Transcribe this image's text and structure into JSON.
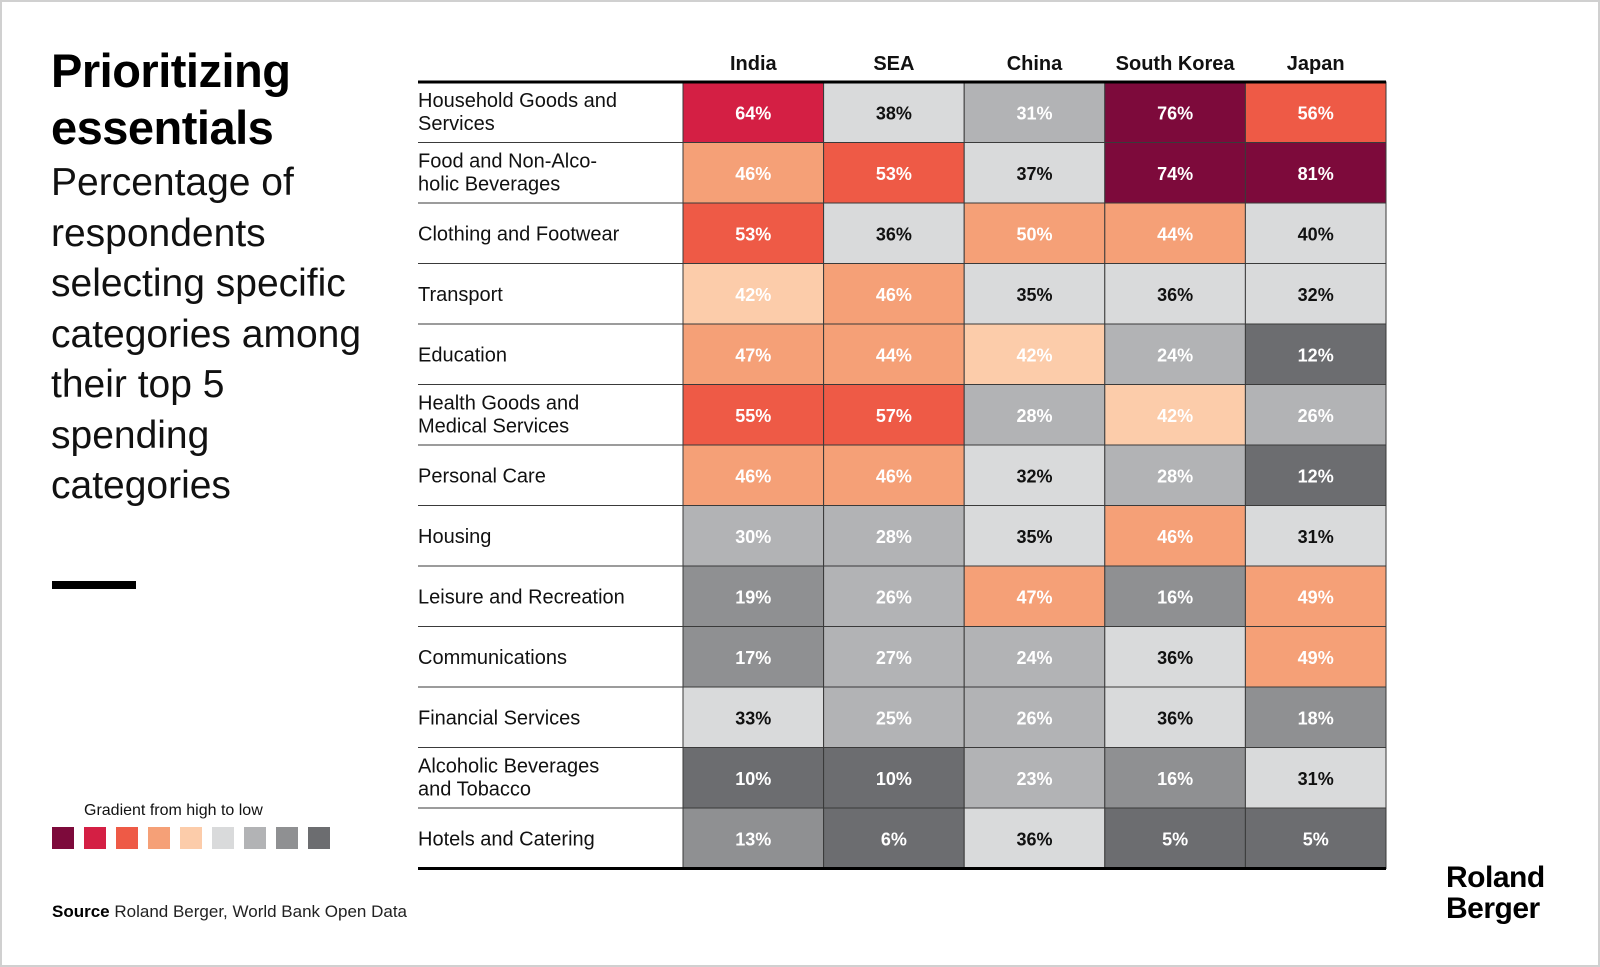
{
  "title": "Prioritizing essentials",
  "subtitle": "Percentage of respondents selecting specific categories among their top 5 spending categories",
  "legend": {
    "title": "Gradient from high to low",
    "colors": [
      "#7d0a3b",
      "#d41f44",
      "#ee5a46",
      "#f5a077",
      "#fcccaa",
      "#d9dadb",
      "#b2b3b5",
      "#8f9092",
      "#6c6d70"
    ]
  },
  "source": {
    "label": "Source",
    "text": "Roland Berger, World Bank Open Data"
  },
  "logo": {
    "line1": "Roland",
    "line2": "Berger"
  },
  "chart_data": {
    "type": "heatmap",
    "title": "Prioritizing essentials",
    "subtitle": "Percentage of respondents selecting specific categories among their top 5 spending categories",
    "columns": [
      "India",
      "SEA",
      "China",
      "South Korea",
      "Japan"
    ],
    "rows": [
      "Household Goods and Services",
      "Food and Non-Alco-holic Beverages",
      "Clothing and Footwear",
      "Transport",
      "Education",
      "Health Goods and Medical Services",
      "Personal Care",
      "Housing",
      "Leisure and Recreation",
      "Communications",
      "Financial Services",
      "Alcoholic Beverages and Tobacco",
      "Hotels and Catering"
    ],
    "row_label_lines": [
      [
        "Household Goods and",
        "Services"
      ],
      [
        "Food and Non-Alco-",
        "holic Beverages"
      ],
      [
        "Clothing and Footwear"
      ],
      [
        "Transport"
      ],
      [
        "Education"
      ],
      [
        "Health Goods and",
        "Medical Services"
      ],
      [
        "Personal Care"
      ],
      [
        "Housing"
      ],
      [
        "Leisure and Recreation"
      ],
      [
        "Communications"
      ],
      [
        "Financial Services"
      ],
      [
        "Alcoholic Beverages",
        "and Tobacco"
      ],
      [
        "Hotels and Catering"
      ]
    ],
    "values": [
      [
        64,
        38,
        31,
        76,
        56
      ],
      [
        46,
        53,
        37,
        74,
        81
      ],
      [
        53,
        36,
        50,
        44,
        40
      ],
      [
        42,
        46,
        35,
        36,
        32
      ],
      [
        47,
        44,
        42,
        24,
        12
      ],
      [
        55,
        57,
        28,
        42,
        26
      ],
      [
        46,
        46,
        32,
        28,
        12
      ],
      [
        30,
        28,
        35,
        46,
        31
      ],
      [
        19,
        26,
        47,
        16,
        49
      ],
      [
        17,
        27,
        24,
        36,
        49
      ],
      [
        33,
        25,
        26,
        36,
        18
      ],
      [
        10,
        10,
        23,
        16,
        31
      ],
      [
        13,
        6,
        36,
        5,
        5
      ]
    ],
    "unit": "%",
    "color_levels": [
      [
        2,
        6,
        7,
        1,
        3
      ],
      [
        4,
        3,
        6,
        1,
        1
      ],
      [
        3,
        6,
        4,
        4,
        6
      ],
      [
        5,
        4,
        6,
        6,
        6
      ],
      [
        4,
        4,
        5,
        7,
        9
      ],
      [
        3,
        3,
        7,
        5,
        7
      ],
      [
        4,
        4,
        6,
        7,
        9
      ],
      [
        7,
        7,
        6,
        4,
        6
      ],
      [
        8,
        7,
        4,
        8,
        4
      ],
      [
        8,
        7,
        7,
        6,
        4
      ],
      [
        6,
        7,
        7,
        6,
        8
      ],
      [
        9,
        9,
        7,
        8,
        6
      ],
      [
        8,
        9,
        6,
        9,
        9
      ]
    ],
    "legend": "Gradient from high to low"
  }
}
